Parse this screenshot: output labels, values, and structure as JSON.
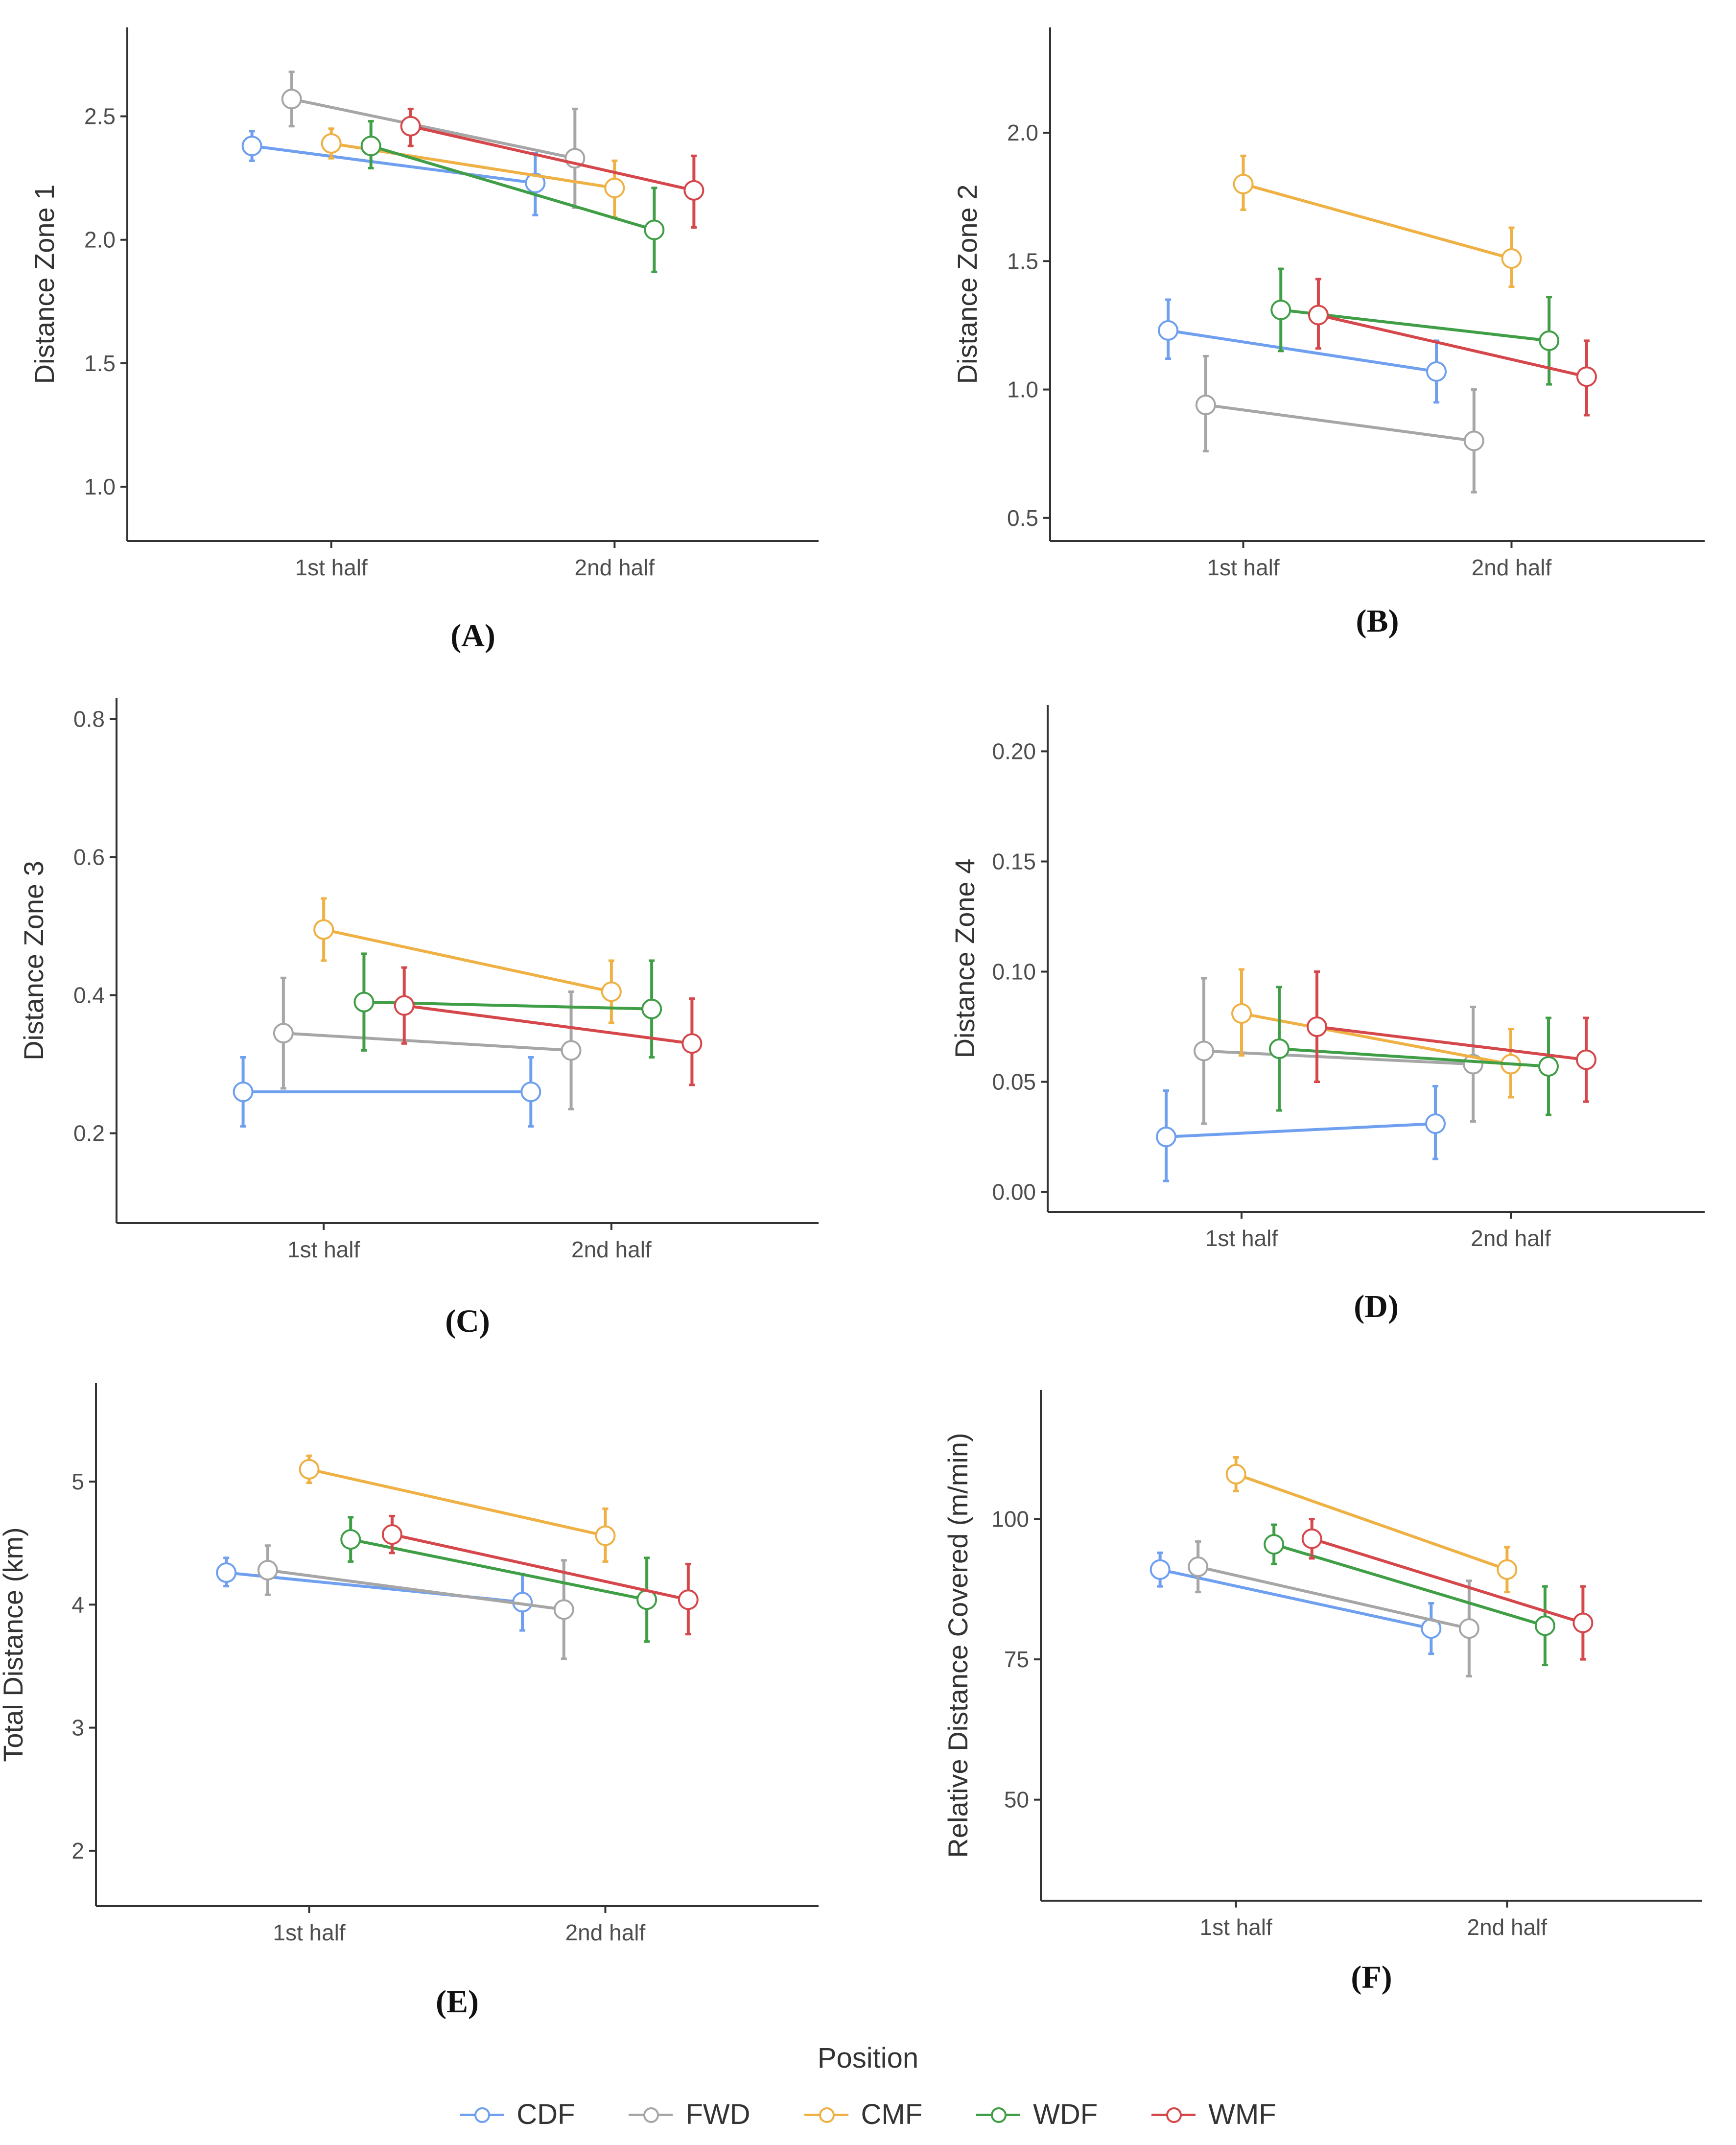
{
  "legend": {
    "title": "Position",
    "items": [
      {
        "name": "CDF",
        "color": "#6f9fef"
      },
      {
        "name": "FWD",
        "color": "#a6a6a6"
      },
      {
        "name": "CMF",
        "color": "#efb044"
      },
      {
        "name": "WDF",
        "color": "#3f9e46"
      },
      {
        "name": "WMF",
        "color": "#d5474a"
      }
    ]
  },
  "chart_data": [
    {
      "type": "line",
      "panel_label": "(A)",
      "ylabel": "Distance Zone 1",
      "xlabel": "",
      "categories": [
        "1st half",
        "2nd half"
      ],
      "yticks": [
        1.0,
        1.5,
        2.0,
        2.5
      ],
      "tick_decimals": 1,
      "ylim": [
        0.78,
        2.86
      ],
      "series": [
        {
          "name": "CDF",
          "mean": [
            2.38,
            2.23
          ],
          "ci_low": [
            2.32,
            2.1
          ],
          "ci_high": [
            2.44,
            2.35
          ]
        },
        {
          "name": "FWD",
          "mean": [
            2.57,
            2.33
          ],
          "ci_low": [
            2.46,
            2.13
          ],
          "ci_high": [
            2.68,
            2.53
          ]
        },
        {
          "name": "CMF",
          "mean": [
            2.39,
            2.21
          ],
          "ci_low": [
            2.33,
            2.09
          ],
          "ci_high": [
            2.45,
            2.32
          ]
        },
        {
          "name": "WDF",
          "mean": [
            2.38,
            2.04
          ],
          "ci_low": [
            2.29,
            1.87
          ],
          "ci_high": [
            2.48,
            2.21
          ]
        },
        {
          "name": "WMF",
          "mean": [
            2.46,
            2.2
          ],
          "ci_low": [
            2.38,
            2.05
          ],
          "ci_high": [
            2.53,
            2.34
          ]
        }
      ]
    },
    {
      "type": "line",
      "panel_label": "(B)",
      "ylabel": "Distance Zone 2",
      "xlabel": "",
      "categories": [
        "1st half",
        "2nd half"
      ],
      "yticks": [
        0.5,
        1.0,
        1.5,
        2.0
      ],
      "tick_decimals": 1,
      "ylim": [
        0.41,
        2.41
      ],
      "series": [
        {
          "name": "CDF",
          "mean": [
            1.23,
            1.07
          ],
          "ci_low": [
            1.12,
            0.95
          ],
          "ci_high": [
            1.35,
            1.19
          ]
        },
        {
          "name": "FWD",
          "mean": [
            0.94,
            0.8
          ],
          "ci_low": [
            0.76,
            0.6
          ],
          "ci_high": [
            1.13,
            1.0
          ]
        },
        {
          "name": "CMF",
          "mean": [
            1.8,
            1.51
          ],
          "ci_low": [
            1.7,
            1.4
          ],
          "ci_high": [
            1.91,
            1.63
          ]
        },
        {
          "name": "WDF",
          "mean": [
            1.31,
            1.19
          ],
          "ci_low": [
            1.15,
            1.02
          ],
          "ci_high": [
            1.47,
            1.36
          ]
        },
        {
          "name": "WMF",
          "mean": [
            1.29,
            1.05
          ],
          "ci_low": [
            1.16,
            0.9
          ],
          "ci_high": [
            1.43,
            1.19
          ]
        }
      ]
    },
    {
      "type": "line",
      "panel_label": "(C)",
      "ylabel": "Distance Zone 3",
      "xlabel": "",
      "categories": [
        "1st half",
        "2nd half"
      ],
      "yticks": [
        0.2,
        0.4,
        0.6,
        0.8
      ],
      "tick_decimals": 1,
      "ylim": [
        0.07,
        0.83
      ],
      "series": [
        {
          "name": "CDF",
          "mean": [
            0.26,
            0.26
          ],
          "ci_low": [
            0.21,
            0.21
          ],
          "ci_high": [
            0.31,
            0.31
          ]
        },
        {
          "name": "FWD",
          "mean": [
            0.345,
            0.32
          ],
          "ci_low": [
            0.265,
            0.235
          ],
          "ci_high": [
            0.425,
            0.405
          ]
        },
        {
          "name": "CMF",
          "mean": [
            0.495,
            0.405
          ],
          "ci_low": [
            0.45,
            0.36
          ],
          "ci_high": [
            0.54,
            0.45
          ]
        },
        {
          "name": "WDF",
          "mean": [
            0.39,
            0.38
          ],
          "ci_low": [
            0.32,
            0.31
          ],
          "ci_high": [
            0.46,
            0.45
          ]
        },
        {
          "name": "WMF",
          "mean": [
            0.385,
            0.33
          ],
          "ci_low": [
            0.33,
            0.27
          ],
          "ci_high": [
            0.44,
            0.395
          ]
        }
      ]
    },
    {
      "type": "line",
      "panel_label": "(D)",
      "ylabel": "Distance Zone 4",
      "xlabel": "",
      "categories": [
        "1st half",
        "2nd half"
      ],
      "yticks": [
        0.0,
        0.05,
        0.1,
        0.15,
        0.2
      ],
      "tick_decimals": 2,
      "ylim": [
        -0.009,
        0.221
      ],
      "series": [
        {
          "name": "CDF",
          "mean": [
            0.025,
            0.031
          ],
          "ci_low": [
            0.005,
            0.015
          ],
          "ci_high": [
            0.046,
            0.048
          ]
        },
        {
          "name": "FWD",
          "mean": [
            0.064,
            0.058
          ],
          "ci_low": [
            0.031,
            0.032
          ],
          "ci_high": [
            0.097,
            0.084
          ]
        },
        {
          "name": "CMF",
          "mean": [
            0.081,
            0.058
          ],
          "ci_low": [
            0.062,
            0.043
          ],
          "ci_high": [
            0.101,
            0.074
          ]
        },
        {
          "name": "WDF",
          "mean": [
            0.065,
            0.057
          ],
          "ci_low": [
            0.037,
            0.035
          ],
          "ci_high": [
            0.093,
            0.079
          ]
        },
        {
          "name": "WMF",
          "mean": [
            0.075,
            0.06
          ],
          "ci_low": [
            0.05,
            0.041
          ],
          "ci_high": [
            0.1,
            0.079
          ]
        }
      ]
    },
    {
      "type": "line",
      "panel_label": "(E)",
      "ylabel": "Total Distance (km)",
      "xlabel": "",
      "categories": [
        "1st half",
        "2nd half"
      ],
      "yticks": [
        2,
        3,
        4,
        5
      ],
      "tick_decimals": 0,
      "ylim": [
        1.55,
        5.8
      ],
      "series": [
        {
          "name": "CDF",
          "mean": [
            4.26,
            4.02
          ],
          "ci_low": [
            4.15,
            3.79
          ],
          "ci_high": [
            4.38,
            4.25
          ]
        },
        {
          "name": "FWD",
          "mean": [
            4.28,
            3.96
          ],
          "ci_low": [
            4.08,
            3.56
          ],
          "ci_high": [
            4.48,
            4.36
          ]
        },
        {
          "name": "CMF",
          "mean": [
            5.1,
            4.56
          ],
          "ci_low": [
            4.99,
            4.35
          ],
          "ci_high": [
            5.21,
            4.78
          ]
        },
        {
          "name": "WDF",
          "mean": [
            4.53,
            4.04
          ],
          "ci_low": [
            4.35,
            3.7
          ],
          "ci_high": [
            4.71,
            4.38
          ]
        },
        {
          "name": "WMF",
          "mean": [
            4.57,
            4.04
          ],
          "ci_low": [
            4.42,
            3.76
          ],
          "ci_high": [
            4.72,
            4.33
          ]
        }
      ]
    },
    {
      "type": "line",
      "panel_label": "(F)",
      "ylabel": "Relative Distance Covered (m/min)",
      "xlabel": "",
      "categories": [
        "1st half",
        "2nd half"
      ],
      "yticks": [
        50,
        75,
        100
      ],
      "tick_decimals": 0,
      "ylim": [
        32,
        123
      ],
      "series": [
        {
          "name": "CDF",
          "mean": [
            91,
            80.5
          ],
          "ci_low": [
            88,
            76
          ],
          "ci_high": [
            94,
            85
          ]
        },
        {
          "name": "FWD",
          "mean": [
            91.5,
            80.5
          ],
          "ci_low": [
            87,
            72
          ],
          "ci_high": [
            96,
            89
          ]
        },
        {
          "name": "CMF",
          "mean": [
            108,
            91
          ],
          "ci_low": [
            105,
            87
          ],
          "ci_high": [
            111,
            95
          ]
        },
        {
          "name": "WDF",
          "mean": [
            95.5,
            81
          ],
          "ci_low": [
            92,
            74
          ],
          "ci_high": [
            99,
            88
          ]
        },
        {
          "name": "WMF",
          "mean": [
            96.5,
            81.5
          ],
          "ci_low": [
            93,
            75
          ],
          "ci_high": [
            100,
            88
          ]
        }
      ]
    }
  ]
}
